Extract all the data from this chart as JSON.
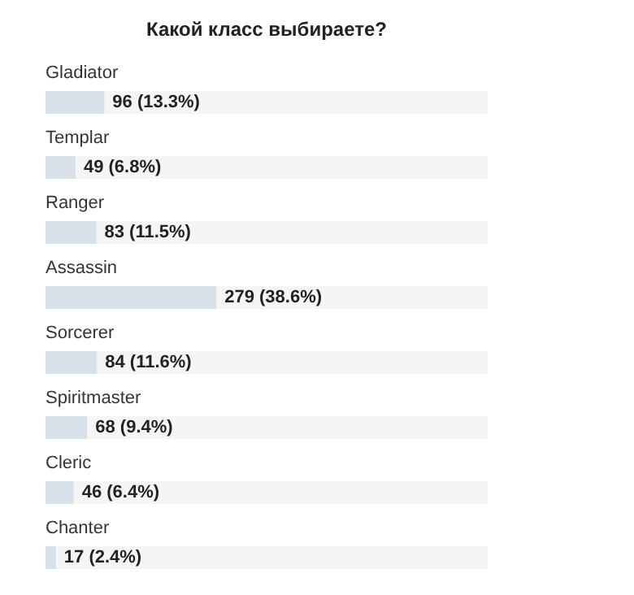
{
  "chart_data": {
    "type": "bar",
    "orientation": "horizontal",
    "title": "Какой класс выбираете?",
    "categories": [
      "Gladiator",
      "Templar",
      "Ranger",
      "Assassin",
      "Sorcerer",
      "Spiritmaster",
      "Cleric",
      "Chanter"
    ],
    "values": [
      96,
      49,
      83,
      279,
      84,
      68,
      46,
      17
    ],
    "value_labels": [
      "96 (13.3%)",
      "49 (6.8%)",
      "83 (11.5%)",
      "279 (38.6%)",
      "84 (11.6%)",
      "68 (9.4%)",
      "46 (6.4%)",
      "17 (2.4%)"
    ],
    "color": "#d8e0e8",
    "tick_labels": false
  }
}
